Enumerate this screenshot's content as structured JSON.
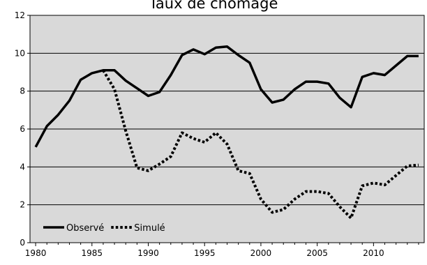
{
  "chart_data": {
    "type": "line",
    "title": "Taux de chômage",
    "xlabel": "",
    "ylabel": "",
    "xlim": [
      1979.5,
      2014.5
    ],
    "ylim": [
      0,
      12
    ],
    "x_ticks": [
      1980,
      1985,
      1990,
      1995,
      2000,
      2005,
      2010
    ],
    "y_ticks": [
      0,
      2,
      4,
      6,
      8,
      10,
      12
    ],
    "grid": true,
    "legend_position": "bottom-left",
    "plot_background": "#d9d9d9",
    "series": [
      {
        "name": "Observé",
        "style": "solid",
        "color": "#000000",
        "x": [
          1980,
          1981,
          1982,
          1983,
          1984,
          1985,
          1986,
          1987,
          1988,
          1989,
          1990,
          1991,
          1992,
          1993,
          1994,
          1995,
          1996,
          1997,
          1998,
          1999,
          2000,
          2001,
          2002,
          2003,
          2004,
          2005,
          2006,
          2007,
          2008,
          2009,
          2010,
          2011,
          2012,
          2013,
          2014
        ],
        "y": [
          5.05,
          6.15,
          6.75,
          7.5,
          8.6,
          8.95,
          9.1,
          9.1,
          8.55,
          8.15,
          7.75,
          7.95,
          8.85,
          9.9,
          10.2,
          9.95,
          10.3,
          10.35,
          9.9,
          9.5,
          8.1,
          7.4,
          7.55,
          8.1,
          8.5,
          8.5,
          8.4,
          7.65,
          7.15,
          8.75,
          8.95,
          8.85,
          9.35,
          9.85,
          9.85
        ]
      },
      {
        "name": "Simulé",
        "style": "dotted",
        "color": "#000000",
        "x": [
          1986,
          1987,
          1988,
          1989,
          1990,
          1991,
          1992,
          1993,
          1994,
          1995,
          1996,
          1997,
          1998,
          1999,
          2000,
          2001,
          2002,
          2003,
          2004,
          2005,
          2006,
          2007,
          2008,
          2009,
          2010,
          2011,
          2012,
          2013,
          2014
        ],
        "y": [
          9.1,
          8.1,
          5.9,
          3.95,
          3.8,
          4.15,
          4.55,
          5.8,
          5.5,
          5.3,
          5.8,
          5.2,
          3.8,
          3.65,
          2.3,
          1.6,
          1.75,
          2.3,
          2.7,
          2.7,
          2.6,
          1.9,
          1.3,
          3.0,
          3.15,
          3.05,
          3.55,
          4.05,
          4.1
        ]
      }
    ]
  }
}
